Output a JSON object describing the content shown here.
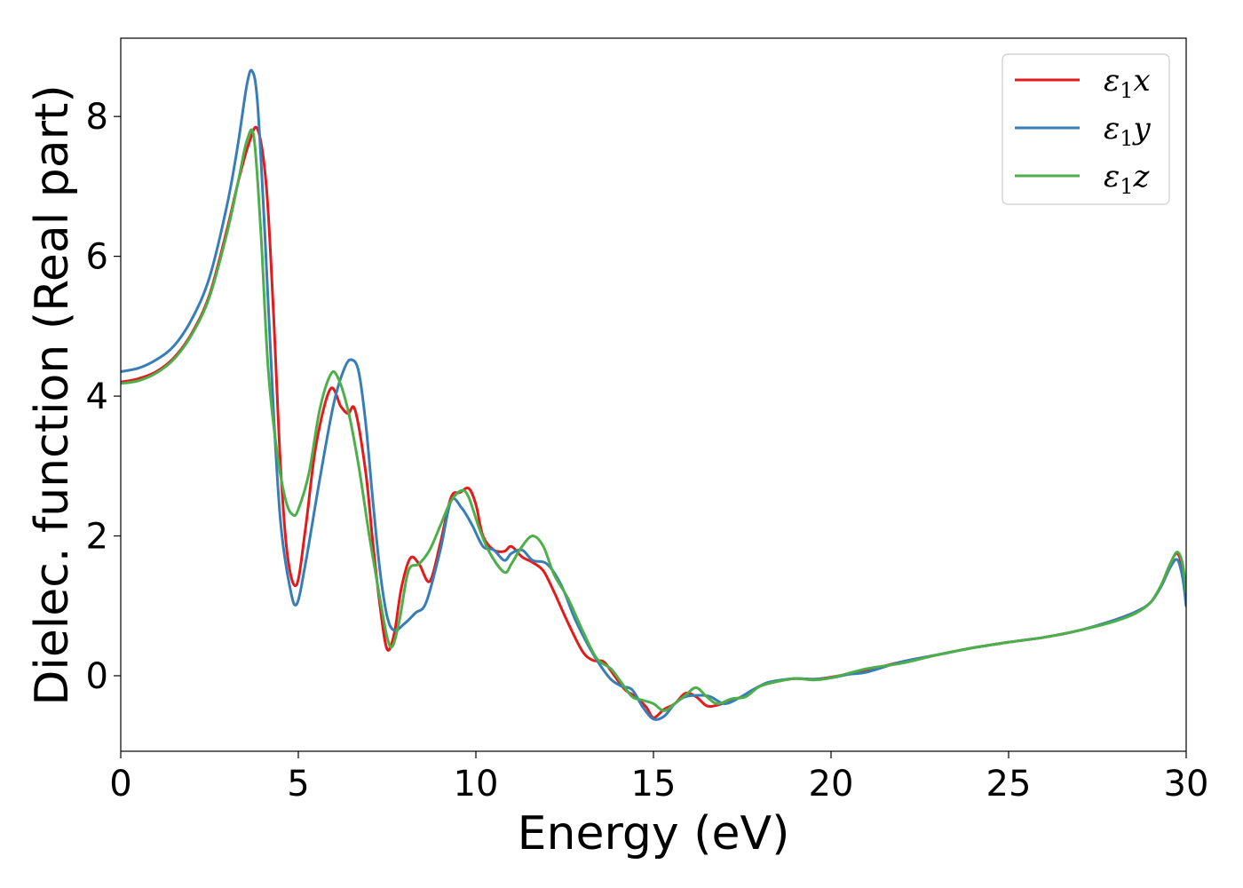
{
  "chart_data": {
    "type": "line",
    "xlabel": "Energy (eV)",
    "ylabel": "Dielec. function (Real part)",
    "xlim": [
      0,
      30
    ],
    "ylim": [
      -1.08,
      9.12
    ],
    "xticks": [
      0,
      5,
      10,
      15,
      20,
      25,
      30
    ],
    "yticks": [
      0,
      2,
      4,
      6,
      8
    ],
    "grid": false,
    "legend_position": "top-right",
    "series": [
      {
        "name": "ε1x",
        "legend_base": "ε",
        "legend_sub": "1",
        "legend_suffix": "x",
        "color": "#e41a1c",
        "x": [
          0,
          0.5,
          1,
          1.5,
          2,
          2.5,
          3,
          3.3,
          3.6,
          3.85,
          4.1,
          4.3,
          4.5,
          4.7,
          4.95,
          5.2,
          5.5,
          5.9,
          6.2,
          6.4,
          6.6,
          6.9,
          7.1,
          7.3,
          7.5,
          7.7,
          7.9,
          8.15,
          8.4,
          8.7,
          9.0,
          9.3,
          9.55,
          9.8,
          10.0,
          10.2,
          10.5,
          10.8,
          11.0,
          11.3,
          11.6,
          11.9,
          12.2,
          12.6,
          13.0,
          13.3,
          13.6,
          13.9,
          14.2,
          14.5,
          14.8,
          15.0,
          15.3,
          15.6,
          15.9,
          16.2,
          16.5,
          16.8,
          17.2,
          17.6,
          18.0,
          18.5,
          19.0,
          19.5,
          20.0,
          21.0,
          22.0,
          23.0,
          24.0,
          25.0,
          26.0,
          27.0,
          28.0,
          28.6,
          29.0,
          29.3,
          29.55,
          29.75,
          29.9,
          30.0
        ],
        "values": [
          4.2,
          4.25,
          4.35,
          4.55,
          4.9,
          5.45,
          6.4,
          7.05,
          7.6,
          7.82,
          7.0,
          5.2,
          3.0,
          1.7,
          1.3,
          2.1,
          3.3,
          4.1,
          3.85,
          3.75,
          3.8,
          2.9,
          1.9,
          1.0,
          0.38,
          0.6,
          1.25,
          1.68,
          1.6,
          1.35,
          1.9,
          2.55,
          2.62,
          2.68,
          2.45,
          2.0,
          1.8,
          1.78,
          1.85,
          1.7,
          1.62,
          1.5,
          1.2,
          0.75,
          0.35,
          0.22,
          0.2,
          0.0,
          -0.2,
          -0.3,
          -0.45,
          -0.6,
          -0.48,
          -0.4,
          -0.25,
          -0.3,
          -0.43,
          -0.42,
          -0.35,
          -0.28,
          -0.15,
          -0.08,
          -0.04,
          -0.05,
          -0.02,
          0.08,
          0.2,
          0.3,
          0.4,
          0.48,
          0.55,
          0.65,
          0.8,
          0.92,
          1.05,
          1.3,
          1.6,
          1.75,
          1.5,
          1.0
        ]
      },
      {
        "name": "ε1y",
        "legend_base": "ε",
        "legend_sub": "1",
        "legend_suffix": "y",
        "color": "#377eb8",
        "x": [
          0,
          0.5,
          1,
          1.5,
          2,
          2.5,
          3,
          3.3,
          3.55,
          3.7,
          3.85,
          4.05,
          4.3,
          4.5,
          4.75,
          4.95,
          5.2,
          5.6,
          6.0,
          6.3,
          6.5,
          6.7,
          6.9,
          7.1,
          7.3,
          7.5,
          7.7,
          8.0,
          8.3,
          8.6,
          9.0,
          9.3,
          9.6,
          9.9,
          10.2,
          10.5,
          10.8,
          11.0,
          11.3,
          11.6,
          12.0,
          12.4,
          12.8,
          13.2,
          13.5,
          13.8,
          14.1,
          14.4,
          14.7,
          15.0,
          15.3,
          15.6,
          15.9,
          16.3,
          16.6,
          17.0,
          17.4,
          17.8,
          18.2,
          18.6,
          19.0,
          19.5,
          20.0,
          20.5,
          21.0,
          22.0,
          23.0,
          24.0,
          25.0,
          26.0,
          27.0,
          28.0,
          28.6,
          29.0,
          29.3,
          29.55,
          29.75,
          29.9,
          30.0
        ],
        "values": [
          4.35,
          4.4,
          4.52,
          4.72,
          5.1,
          5.7,
          6.75,
          7.6,
          8.45,
          8.65,
          8.2,
          6.4,
          3.8,
          2.2,
          1.3,
          1.02,
          1.6,
          2.8,
          3.9,
          4.4,
          4.52,
          4.35,
          3.6,
          2.5,
          1.5,
          0.85,
          0.65,
          0.75,
          0.9,
          1.05,
          1.8,
          2.5,
          2.4,
          2.15,
          1.85,
          1.8,
          1.65,
          1.75,
          1.8,
          1.65,
          1.6,
          1.3,
          0.8,
          0.4,
          0.15,
          -0.05,
          -0.15,
          -0.2,
          -0.45,
          -0.62,
          -0.58,
          -0.4,
          -0.3,
          -0.28,
          -0.3,
          -0.4,
          -0.32,
          -0.2,
          -0.1,
          -0.06,
          -0.04,
          -0.05,
          -0.03,
          0.02,
          0.05,
          0.2,
          0.3,
          0.4,
          0.48,
          0.55,
          0.65,
          0.8,
          0.92,
          1.05,
          1.28,
          1.55,
          1.66,
          1.4,
          1.0
        ]
      },
      {
        "name": "ε1z",
        "legend_base": "ε",
        "legend_sub": "1",
        "legend_suffix": "z",
        "color": "#4daf4a",
        "x": [
          0,
          0.5,
          1,
          1.5,
          2,
          2.5,
          3,
          3.3,
          3.55,
          3.75,
          3.95,
          4.15,
          4.4,
          4.65,
          4.85,
          5.0,
          5.3,
          5.6,
          5.9,
          6.1,
          6.4,
          6.7,
          7.0,
          7.3,
          7.5,
          7.65,
          7.85,
          8.1,
          8.4,
          8.7,
          9.0,
          9.3,
          9.6,
          9.8,
          10.1,
          10.4,
          10.8,
          11.0,
          11.3,
          11.6,
          11.9,
          12.2,
          12.6,
          13.0,
          13.4,
          13.8,
          14.1,
          14.4,
          14.7,
          15.0,
          15.3,
          15.6,
          15.9,
          16.2,
          16.5,
          16.8,
          17.2,
          17.6,
          18.0,
          18.5,
          19.0,
          19.5,
          20.0,
          21.0,
          22.0,
          23.0,
          24.0,
          25.0,
          26.0,
          27.0,
          28.0,
          28.6,
          29.0,
          29.3,
          29.55,
          29.75,
          29.9,
          30.0
        ],
        "values": [
          4.18,
          4.22,
          4.33,
          4.53,
          4.88,
          5.42,
          6.35,
          7.05,
          7.65,
          7.7,
          6.3,
          4.4,
          3.2,
          2.5,
          2.3,
          2.38,
          2.9,
          3.8,
          4.3,
          4.28,
          3.8,
          3.0,
          2.0,
          1.1,
          0.55,
          0.42,
          0.8,
          1.5,
          1.6,
          1.8,
          2.15,
          2.5,
          2.65,
          2.55,
          2.1,
          1.75,
          1.48,
          1.6,
          1.85,
          2.0,
          1.85,
          1.45,
          1.1,
          0.65,
          0.25,
          0.1,
          -0.1,
          -0.3,
          -0.35,
          -0.4,
          -0.5,
          -0.4,
          -0.28,
          -0.17,
          -0.3,
          -0.4,
          -0.33,
          -0.3,
          -0.15,
          -0.08,
          -0.04,
          -0.06,
          -0.03,
          0.1,
          0.18,
          0.3,
          0.4,
          0.48,
          0.55,
          0.65,
          0.78,
          0.9,
          1.05,
          1.3,
          1.6,
          1.77,
          1.6,
          1.2
        ]
      }
    ]
  }
}
